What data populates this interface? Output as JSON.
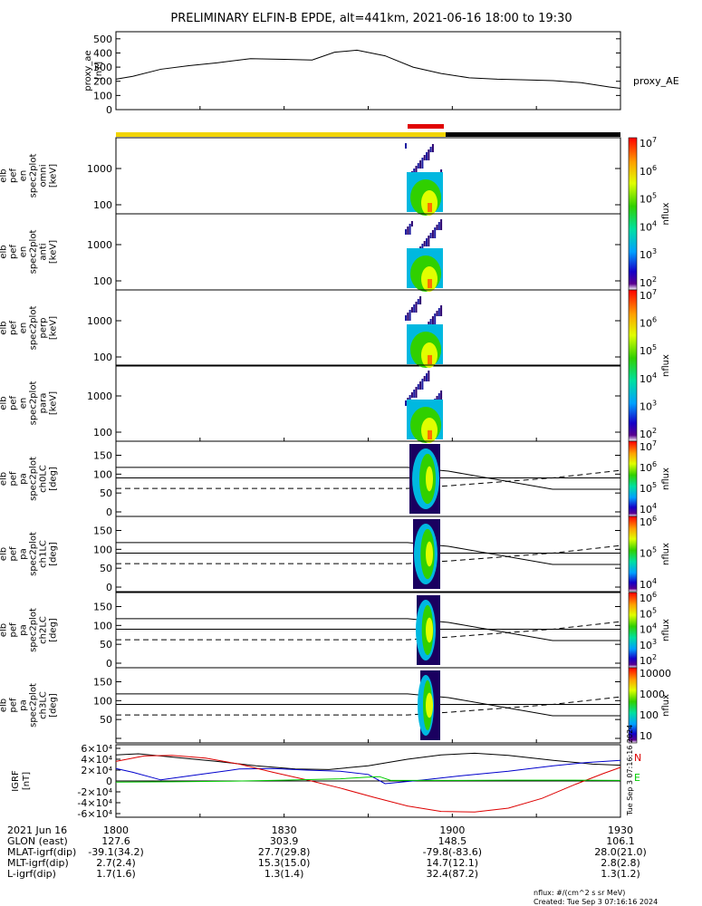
{
  "title": "PRELIMINARY ELFIN-B EPDE, alt=441km, 2021-06-16 18:00 to 19:30",
  "chart_data": [
    {
      "type": "line",
      "name": "proxy_ae",
      "ylabel": [
        "proxy_ae",
        "[nT]"
      ],
      "side_label": "proxy_AE",
      "ylim": [
        0,
        550
      ],
      "yticks": [
        "0",
        "100",
        "200",
        "300",
        "400",
        "500"
      ],
      "xlim_min": [
        0,
        90
      ],
      "series": [
        {
          "name": "proxy_AE",
          "x": [
            0,
            3,
            8,
            13,
            18,
            24,
            30,
            35,
            39,
            43,
            48,
            53,
            58,
            63,
            68,
            73,
            78,
            83,
            88,
            90
          ],
          "y": [
            215,
            235,
            285,
            310,
            330,
            360,
            355,
            350,
            405,
            420,
            380,
            300,
            255,
            225,
            215,
            210,
            205,
            190,
            160,
            150
          ]
        }
      ]
    },
    {
      "type": "heatmap",
      "name": "energy spectrograms",
      "panels": [
        {
          "ylabel": [
            "elb",
            "pef",
            "en",
            "spec2plot",
            "omni",
            "[keV]"
          ],
          "yticks": [
            "100",
            "1000"
          ]
        },
        {
          "ylabel": [
            "elb",
            "pef",
            "en",
            "spec2plot",
            "anti",
            "[keV]"
          ],
          "yticks": [
            "100",
            "1000"
          ]
        },
        {
          "ylabel": [
            "elb",
            "pef",
            "en",
            "spec2plot",
            "perp",
            "[keV]"
          ],
          "yticks": [
            "100",
            "1000"
          ]
        },
        {
          "ylabel": [
            "elb",
            "pef",
            "en",
            "spec2plot",
            "para",
            "[keV]"
          ],
          "yticks": [
            "100",
            "1000"
          ]
        }
      ],
      "colorbar": {
        "label": "nflux",
        "ticks": [
          "10^2",
          "10^3",
          "10^4",
          "10^5",
          "10^6",
          "10^7"
        ]
      }
    },
    {
      "type": "heatmap",
      "name": "pitch-angle spectrograms",
      "panels": [
        {
          "ylabel": [
            "elb",
            "pef",
            "pa",
            "spec2plot",
            "ch0LC",
            "[deg]"
          ],
          "yticks": [
            "0",
            "50",
            "100",
            "150"
          ],
          "colorbar_ticks": [
            "10^4",
            "10^5",
            "10^6",
            "10^7"
          ]
        },
        {
          "ylabel": [
            "elb",
            "pef",
            "pa",
            "spec2plot",
            "ch1LC",
            "[deg]"
          ],
          "yticks": [
            "0",
            "50",
            "100",
            "150"
          ],
          "colorbar_ticks": [
            "10^4",
            "10^5",
            "10^6"
          ]
        },
        {
          "ylabel": [
            "elb",
            "pef",
            "pa",
            "spec2plot",
            "ch2LC",
            "[deg]"
          ],
          "yticks": [
            "0",
            "50",
            "100",
            "150"
          ],
          "colorbar_ticks": [
            "10^2",
            "10^3",
            "10^4",
            "10^5",
            "10^6"
          ]
        },
        {
          "ylabel": [
            "elb",
            "pef",
            "pa",
            "spec2plot",
            "ch3LC",
            "[deg]"
          ],
          "yticks": [
            "50",
            "100",
            "150"
          ],
          "colorbar_ticks": [
            "10",
            "100",
            "1000",
            "10000"
          ]
        }
      ],
      "colorbar_label": "nflux",
      "ylim": [
        0,
        180
      ]
    },
    {
      "type": "line",
      "name": "IGRF",
      "ylabel": [
        "IGRF",
        "[nT]"
      ],
      "ylim": [
        -65000,
        65000
      ],
      "yticks": [
        "-6×10⁴",
        "-4×10⁴",
        "-2×10⁴",
        "0",
        "2×10⁴",
        "4×10⁴",
        "6×10⁴"
      ],
      "legend": [
        "N",
        "E"
      ],
      "series": [
        {
          "name": "magnitude",
          "color": "#000000",
          "x": [
            0,
            4,
            10,
            18,
            25,
            32,
            38,
            45,
            52,
            58,
            64,
            70,
            78,
            85,
            90
          ],
          "y": [
            48000,
            50000,
            44000,
            36000,
            28000,
            22000,
            21000,
            28000,
            40000,
            48000,
            51000,
            47000,
            38000,
            31000,
            29000
          ]
        },
        {
          "name": "blue",
          "color": "#0000cc",
          "x": [
            0,
            3,
            8,
            15,
            22,
            28,
            34,
            40,
            45,
            48,
            55,
            62,
            70,
            78,
            84,
            90
          ],
          "y": [
            23000,
            16000,
            2000,
            12000,
            22000,
            23000,
            20000,
            18000,
            12000,
            -5000,
            2000,
            10000,
            18000,
            28000,
            34000,
            38000
          ]
        },
        {
          "name": "N",
          "color": "#dd0000",
          "x": [
            0,
            5,
            10,
            16,
            22,
            28,
            34,
            40,
            46,
            52,
            58,
            64,
            70,
            76,
            82,
            87,
            90
          ],
          "y": [
            36000,
            46000,
            47000,
            42000,
            31000,
            16000,
            2000,
            -13000,
            -30000,
            -46000,
            -56000,
            -57000,
            -50000,
            -32000,
            -6000,
            14000,
            25000
          ]
        },
        {
          "name": "E",
          "color": "#00cc00",
          "x": [
            0,
            10,
            20,
            30,
            40,
            45,
            47,
            49,
            60,
            70,
            80,
            90
          ],
          "y": [
            -2000,
            -1500,
            -500,
            1500,
            4000,
            7000,
            8000,
            1000,
            1000,
            1500,
            1500,
            1000
          ]
        }
      ]
    }
  ],
  "x_axis": {
    "ticks": [
      "1800",
      "1830",
      "1900",
      "1930"
    ]
  },
  "footer_rows": [
    {
      "label": "2021 Jun 16",
      "values": [
        "1800",
        "1830",
        "1900",
        "1930"
      ]
    },
    {
      "label": "GLON (east)",
      "values": [
        "127.6",
        "303.9",
        "148.5",
        "106.1"
      ]
    },
    {
      "label": "MLAT-igrf(dip)",
      "values": [
        "-39.1(34.2)",
        "27.7(29.8)",
        "-79.8(-83.6)",
        "28.0(21.0)"
      ]
    },
    {
      "label": "MLT-igrf(dip)",
      "values": [
        "2.7(2.4)",
        "15.3(15.0)",
        "14.7(12.1)",
        "2.8(2.8)"
      ]
    },
    {
      "label": "L-igrf(dip)",
      "values": [
        "1.7(1.6)",
        "1.3(1.4)",
        "32.4(87.2)",
        "1.3(1.2)"
      ]
    }
  ],
  "units_note": "nflux: #/(cm^2 s sr MeV)",
  "created": "Created: Tue Sep  3 07:16:16 2024",
  "side_stamp": "Tue Sep  3 07:16:16 2024"
}
